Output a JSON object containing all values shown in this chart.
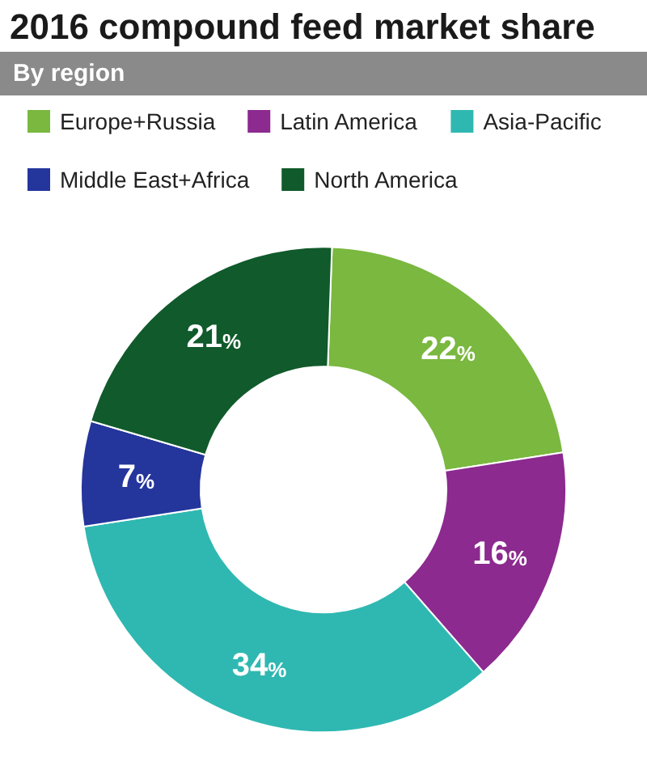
{
  "chart_data": {
    "type": "donut",
    "title": "2016 compound feed market share",
    "subtitle": "By region",
    "categories": [
      "Europe+Russia",
      "Latin America",
      "Asia-Pacific",
      "Middle East+Africa",
      "North America"
    ],
    "values": [
      22,
      16,
      34,
      7,
      21
    ],
    "value_labels": [
      "22%",
      "16%",
      "34%",
      "7%",
      "21%"
    ],
    "colors": [
      "#7ab83f",
      "#8c2a8f",
      "#2fb8b1",
      "#24359c",
      "#105a2b"
    ],
    "legend": "top"
  }
}
